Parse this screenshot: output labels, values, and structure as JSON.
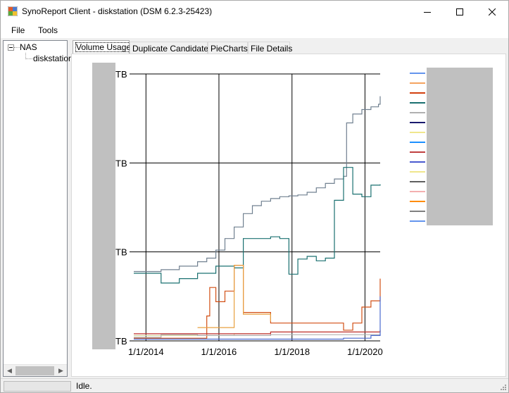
{
  "window": {
    "title": "SynoReport Client - diskstation (DSM 6.2.3-25423)",
    "controls": [
      "minimize",
      "maximize",
      "close"
    ]
  },
  "menu": {
    "items": [
      "File",
      "Tools"
    ]
  },
  "tree": {
    "root": "NAS",
    "child": "diskstation"
  },
  "tabs": [
    {
      "label": "Volume Usage",
      "active": true
    },
    {
      "label": "Duplicate Candidates",
      "active": false
    },
    {
      "label": "PieCharts",
      "active": false
    },
    {
      "label": "File Details",
      "active": false
    }
  ],
  "status": {
    "text": "Idle.",
    "progress": 0
  },
  "chart_data": {
    "type": "line",
    "title": "",
    "xlabel": "",
    "ylabel": "",
    "x_tick_labels": [
      "1/1/2014",
      "1/1/2016",
      "1/1/2018",
      "1/1/2020"
    ],
    "y_tick_labels": [
      "TB",
      "TB",
      "TB",
      "TB"
    ],
    "xlim": [
      "2013-09-01",
      "2020-06-01"
    ],
    "ylim": [
      0,
      3
    ],
    "grid": true,
    "legend_placement": "right",
    "legend_entries_obscured": true,
    "series": [
      {
        "color": "#708090",
        "points": [
          [
            "2013-09-01",
            0.78
          ],
          [
            "2014-06-01",
            0.8
          ],
          [
            "2014-12-01",
            0.84
          ],
          [
            "2015-06-01",
            0.89
          ],
          [
            "2015-09-01",
            0.93
          ],
          [
            "2015-12-01",
            1.02
          ],
          [
            "2016-03-01",
            1.15
          ],
          [
            "2016-06-01",
            1.28
          ],
          [
            "2016-09-01",
            1.43
          ],
          [
            "2016-12-01",
            1.52
          ],
          [
            "2017-03-01",
            1.57
          ],
          [
            "2017-06-01",
            1.6
          ],
          [
            "2017-09-01",
            1.62
          ],
          [
            "2017-12-01",
            1.63
          ],
          [
            "2018-03-01",
            1.64
          ],
          [
            "2018-06-01",
            1.67
          ],
          [
            "2018-09-01",
            1.72
          ],
          [
            "2018-12-01",
            1.77
          ],
          [
            "2019-03-01",
            1.82
          ],
          [
            "2019-06-01",
            1.85
          ],
          [
            "2019-07-01",
            2.45
          ],
          [
            "2019-09-01",
            2.55
          ],
          [
            "2019-12-01",
            2.6
          ],
          [
            "2020-03-01",
            2.63
          ],
          [
            "2020-05-15",
            2.66
          ],
          [
            "2020-06-01",
            2.75
          ]
        ]
      },
      {
        "color": "#1a7070",
        "points": [
          [
            "2013-09-01",
            0.76
          ],
          [
            "2014-06-01",
            0.65
          ],
          [
            "2014-12-01",
            0.7
          ],
          [
            "2015-06-01",
            0.76
          ],
          [
            "2015-12-01",
            0.84
          ],
          [
            "2016-06-01",
            0.82
          ],
          [
            "2016-09-01",
            1.15
          ],
          [
            "2017-06-01",
            1.17
          ],
          [
            "2017-09-01",
            1.15
          ],
          [
            "2017-12-01",
            0.75
          ],
          [
            "2018-03-01",
            0.92
          ],
          [
            "2018-06-01",
            0.95
          ],
          [
            "2018-09-01",
            0.9
          ],
          [
            "2018-12-01",
            0.93
          ],
          [
            "2019-03-01",
            1.58
          ],
          [
            "2019-06-01",
            1.95
          ],
          [
            "2019-09-01",
            1.65
          ],
          [
            "2019-12-01",
            1.62
          ],
          [
            "2020-03-01",
            1.75
          ],
          [
            "2020-06-01",
            1.76
          ]
        ]
      },
      {
        "color": "#d24f14",
        "points": [
          [
            "2013-09-01",
            0.03
          ],
          [
            "2015-06-01",
            0.03
          ],
          [
            "2015-09-01",
            0.28
          ],
          [
            "2015-10-01",
            0.6
          ],
          [
            "2015-12-01",
            0.44
          ],
          [
            "2016-03-01",
            0.56
          ],
          [
            "2016-06-01",
            0.85
          ],
          [
            "2016-09-01",
            0.32
          ],
          [
            "2017-06-01",
            0.2
          ],
          [
            "2017-09-01",
            0.2
          ],
          [
            "2019-06-01",
            0.12
          ],
          [
            "2019-09-01",
            0.2
          ],
          [
            "2019-12-01",
            0.38
          ],
          [
            "2020-03-01",
            0.45
          ],
          [
            "2020-06-01",
            0.7
          ]
        ]
      },
      {
        "color": "#e8a040",
        "points": [
          [
            "2015-06-01",
            0.15
          ],
          [
            "2016-06-01",
            0.85
          ],
          [
            "2016-09-01",
            0.3
          ],
          [
            "2017-06-01",
            0.22
          ]
        ]
      },
      {
        "color": "#d9d9a0",
        "points": [
          [
            "2013-09-01",
            0.06
          ],
          [
            "2016-06-01",
            0.08
          ],
          [
            "2017-06-01",
            0.1
          ],
          [
            "2020-06-01",
            0.12
          ]
        ]
      },
      {
        "color": "#b0b0b0",
        "points": [
          [
            "2013-09-01",
            0.04
          ],
          [
            "2014-06-01",
            0.07
          ],
          [
            "2015-06-01",
            0.06
          ],
          [
            "2017-06-01",
            0.07
          ],
          [
            "2020-06-01",
            0.08
          ]
        ]
      },
      {
        "color": "#c03030",
        "points": [
          [
            "2013-09-01",
            0.08
          ],
          [
            "2017-06-01",
            0.1
          ],
          [
            "2020-06-01",
            0.12
          ]
        ]
      },
      {
        "color": "#4a6ad0",
        "points": [
          [
            "2013-09-01",
            0.02
          ],
          [
            "2019-06-01",
            0.03
          ],
          [
            "2020-03-01",
            0.06
          ],
          [
            "2020-06-01",
            0.5
          ]
        ]
      }
    ]
  }
}
